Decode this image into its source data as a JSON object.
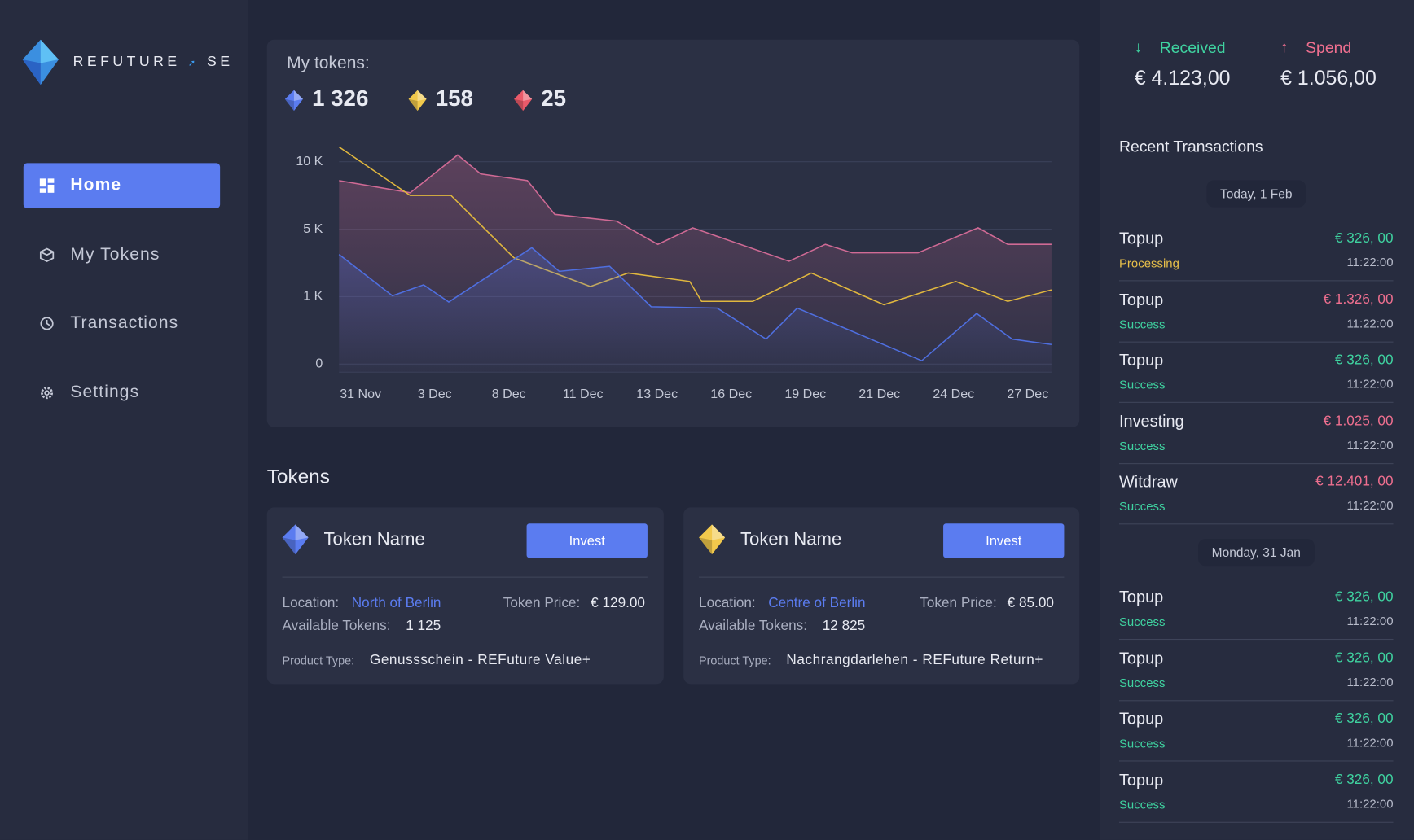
{
  "brand": {
    "name": "REFUTURE",
    "suffix": "SE"
  },
  "nav": [
    "Home",
    "My Tokens",
    "Transactions",
    "Settings"
  ],
  "tokens_summary": {
    "title": "My tokens:",
    "items": [
      {
        "value": "1 326",
        "color": "#5b7cf0"
      },
      {
        "value": "158",
        "color": "#f2c94c"
      },
      {
        "value": "25",
        "color": "#eb5a6a"
      }
    ]
  },
  "chart_data": {
    "type": "line",
    "xlim": [
      -0.29,
      9.32
    ],
    "xticks": [
      {
        "value": 0,
        "label": "31 Nov"
      },
      {
        "value": 1,
        "label": "3 Dec"
      },
      {
        "value": 2,
        "label": "8 Dec"
      },
      {
        "value": 3,
        "label": "11 Dec"
      },
      {
        "value": 4,
        "label": "13 Dec"
      },
      {
        "value": 5,
        "label": "16 Dec"
      },
      {
        "value": 6,
        "label": "19 Dec"
      },
      {
        "value": 7,
        "label": "21 Dec"
      },
      {
        "value": 8,
        "label": "24 Dec"
      },
      {
        "value": 9,
        "label": "27 Dec"
      }
    ],
    "ylim": [
      -120,
      11300
    ],
    "yticks": [
      0,
      {
        "value": 1000,
        "label": "1 K"
      },
      {
        "value": 5000,
        "label": "5 K"
      },
      {
        "value": 10000,
        "label": "10 K"
      }
    ],
    "grid": true,
    "series": [
      {
        "color": "#d06a95",
        "area": true,
        "x": [
          -0.29,
          0.67,
          1.31,
          1.62,
          2.25,
          2.62,
          3.45,
          4.01,
          4.48,
          5.78,
          6.27,
          6.63,
          7.52,
          8.33,
          8.73,
          9.32
        ],
        "values": [
          8600,
          7700,
          10500,
          9100,
          8600,
          6100,
          5600,
          4100,
          5100,
          3100,
          4100,
          3600,
          3600,
          5100,
          4100,
          4100
        ]
      },
      {
        "color": "#e0b73e",
        "area": false,
        "x": [
          -0.29,
          0.67,
          1.22,
          2.07,
          3.1,
          3.61,
          4.44,
          4.6,
          5.29,
          6.08,
          7.06,
          8.03,
          8.73,
          9.32
        ],
        "values": [
          11100,
          7500,
          7500,
          3300,
          1600,
          2400,
          1900,
          930,
          930,
          2400,
          880,
          1900,
          930,
          1400
        ]
      },
      {
        "color": "#4f6fe0",
        "area": true,
        "x": [
          -0.29,
          0.43,
          0.85,
          1.19,
          2.31,
          2.68,
          3.36,
          3.92,
          4.81,
          5.47,
          5.89,
          7.57,
          8.31,
          8.79,
          9.32
        ],
        "values": [
          3500,
          1050,
          1700,
          920,
          3900,
          2500,
          2800,
          850,
          830,
          370,
          830,
          50,
          750,
          370,
          290
        ]
      }
    ]
  },
  "tokens": {
    "title": "Tokens",
    "cards": [
      {
        "color": "#5b7cf0",
        "name": "Token Name",
        "button": "Invest",
        "location_label": "Location:",
        "location": "North of Berlin",
        "price_label": "Token Price:",
        "price": "€ 129.00",
        "available_label": "Available Tokens:",
        "available": "1 125",
        "type_label": "Product Type:",
        "type": "Genussschein - REFuture Value+"
      },
      {
        "color": "#f2c94c",
        "name": "Token Name",
        "button": "Invest",
        "location_label": "Location:",
        "location": "Centre of Berlin",
        "price_label": "Token Price:",
        "price": "€ 85.00",
        "available_label": "Available Tokens:",
        "available": "12 825",
        "type_label": "Product Type:",
        "type": "Nachrangdarlehen - REFuture Return+"
      }
    ]
  },
  "summary": {
    "received": {
      "label": "Received",
      "amount": "€ 4.123,00",
      "color": "#3fd3a0"
    },
    "spend": {
      "label": "Spend",
      "amount": "€ 1.056,00",
      "color": "#ef6f8f"
    }
  },
  "transactions": {
    "title": "Recent Transactions",
    "groups": [
      {
        "date": "Today, 1 Feb",
        "items": [
          {
            "title": "Topup",
            "status": "Processing",
            "status_color": "#e8c04a",
            "amount": "€ 326, 00",
            "color": "#3fd3a0",
            "time": "11:22:00"
          },
          {
            "title": "Topup",
            "status": "Success",
            "status_color": "#3fd3a0",
            "amount": "€ 1.326, 00",
            "color": "#ef6f8f",
            "time": "11:22:00"
          },
          {
            "title": "Topup",
            "status": "Success",
            "status_color": "#3fd3a0",
            "amount": "€ 326, 00",
            "color": "#3fd3a0",
            "time": "11:22:00"
          },
          {
            "title": "Investing",
            "status": "Success",
            "status_color": "#3fd3a0",
            "amount": "€ 1.025, 00",
            "color": "#ef6f8f",
            "time": "11:22:00"
          },
          {
            "title": "Witdraw",
            "status": "Success",
            "status_color": "#3fd3a0",
            "amount": "€ 12.401, 00",
            "color": "#ef6f8f",
            "time": "11:22:00"
          }
        ]
      },
      {
        "date": "Monday, 31 Jan",
        "items": [
          {
            "title": "Topup",
            "status": "Success",
            "status_color": "#3fd3a0",
            "amount": "€ 326, 00",
            "color": "#3fd3a0",
            "time": "11:22:00"
          },
          {
            "title": "Topup",
            "status": "Success",
            "status_color": "#3fd3a0",
            "amount": "€ 326, 00",
            "color": "#3fd3a0",
            "time": "11:22:00"
          },
          {
            "title": "Topup",
            "status": "Success",
            "status_color": "#3fd3a0",
            "amount": "€ 326, 00",
            "color": "#3fd3a0",
            "time": "11:22:00"
          },
          {
            "title": "Topup",
            "status": "Success",
            "status_color": "#3fd3a0",
            "amount": "€ 326, 00",
            "color": "#3fd3a0",
            "time": "11:22:00"
          }
        ]
      }
    ]
  }
}
